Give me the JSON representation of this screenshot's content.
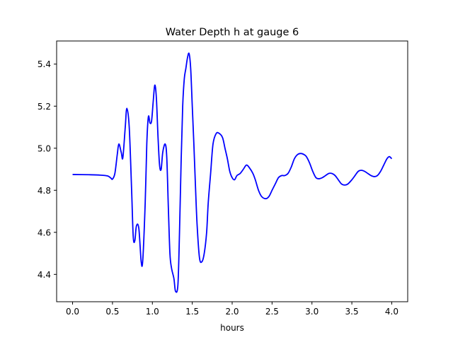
{
  "chart_data": {
    "type": "line",
    "title": "Water Depth h at gauge 6",
    "xlabel": "hours",
    "ylabel": "",
    "xlim": [
      -0.2,
      4.2
    ],
    "ylim": [
      4.27,
      5.51
    ],
    "xticks": [
      0.0,
      0.5,
      1.0,
      1.5,
      2.0,
      2.5,
      3.0,
      3.5,
      4.0
    ],
    "xtick_labels": [
      "0.0",
      "0.5",
      "1.0",
      "1.5",
      "2.0",
      "2.5",
      "3.0",
      "3.5",
      "4.0"
    ],
    "yticks": [
      4.4,
      4.6,
      4.8,
      5.0,
      5.2,
      5.4
    ],
    "ytick_labels": [
      "4.4",
      "4.6",
      "4.8",
      "5.0",
      "5.2",
      "5.4"
    ],
    "grid": false,
    "legend": "none",
    "series": [
      {
        "color": "#0000ff",
        "x": [
          0.0,
          0.2,
          0.35,
          0.44,
          0.48,
          0.5,
          0.53,
          0.56,
          0.58,
          0.61,
          0.63,
          0.66,
          0.68,
          0.71,
          0.74,
          0.76,
          0.78,
          0.8,
          0.83,
          0.86,
          0.88,
          0.91,
          0.93,
          0.95,
          0.97,
          0.99,
          1.01,
          1.03,
          1.05,
          1.07,
          1.09,
          1.11,
          1.13,
          1.16,
          1.18,
          1.2,
          1.22,
          1.24,
          1.27,
          1.29,
          1.32,
          1.34,
          1.36,
          1.38,
          1.4,
          1.42,
          1.44,
          1.46,
          1.48,
          1.5,
          1.52,
          1.54,
          1.56,
          1.59,
          1.62,
          1.65,
          1.68,
          1.7,
          1.73,
          1.76,
          1.8,
          1.84,
          1.88,
          1.91,
          1.94,
          1.97,
          2.0,
          2.03,
          2.06,
          2.1,
          2.14,
          2.18,
          2.22,
          2.26,
          2.29,
          2.33,
          2.37,
          2.42,
          2.46,
          2.5,
          2.54,
          2.58,
          2.62,
          2.66,
          2.7,
          2.74,
          2.78,
          2.82,
          2.86,
          2.9,
          2.93,
          2.97,
          3.01,
          3.05,
          3.09,
          3.13,
          3.17,
          3.21,
          3.25,
          3.29,
          3.33,
          3.37,
          3.41,
          3.45,
          3.5,
          3.54,
          3.58,
          3.62,
          3.66,
          3.7,
          3.74,
          3.78,
          3.82,
          3.86,
          3.9,
          3.94,
          3.97,
          4.0
        ],
        "y": [
          4.875,
          4.874,
          4.872,
          4.868,
          4.858,
          4.853,
          4.88,
          4.97,
          5.02,
          4.98,
          4.955,
          5.1,
          5.19,
          5.1,
          4.8,
          4.58,
          4.56,
          4.63,
          4.62,
          4.46,
          4.47,
          4.74,
          5.02,
          5.15,
          5.12,
          5.13,
          5.22,
          5.3,
          5.24,
          5.06,
          4.92,
          4.9,
          4.98,
          5.02,
          4.96,
          4.72,
          4.5,
          4.43,
          4.38,
          4.32,
          4.35,
          4.6,
          4.93,
          5.2,
          5.33,
          5.38,
          5.43,
          5.45,
          5.38,
          5.2,
          5.02,
          4.82,
          4.64,
          4.48,
          4.46,
          4.5,
          4.6,
          4.74,
          4.88,
          5.02,
          5.07,
          5.07,
          5.05,
          5.0,
          4.95,
          4.89,
          4.86,
          4.85,
          4.87,
          4.88,
          4.9,
          4.92,
          4.905,
          4.88,
          4.85,
          4.8,
          4.77,
          4.76,
          4.77,
          4.8,
          4.83,
          4.86,
          4.87,
          4.87,
          4.88,
          4.91,
          4.95,
          4.97,
          4.975,
          4.97,
          4.96,
          4.93,
          4.89,
          4.86,
          4.855,
          4.86,
          4.87,
          4.88,
          4.88,
          4.87,
          4.85,
          4.83,
          4.825,
          4.83,
          4.85,
          4.87,
          4.89,
          4.895,
          4.89,
          4.88,
          4.87,
          4.865,
          4.87,
          4.89,
          4.92,
          4.95,
          4.96,
          4.95
        ]
      }
    ]
  }
}
